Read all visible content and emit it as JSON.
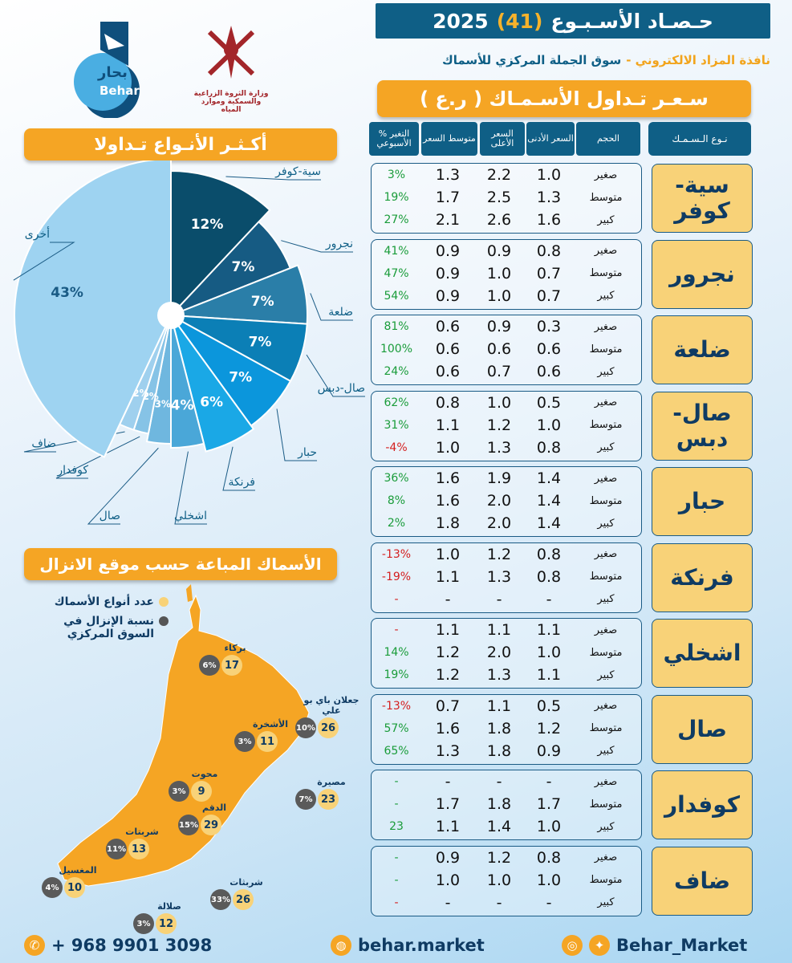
{
  "header": {
    "title_text": "حـصـاد الأسـبـوع",
    "week_number": "(41)",
    "year": "2025",
    "source_prefix": "نافذة المزاد الالكتروني -",
    "source_market": "سوق الجملة المركزي للأسماك"
  },
  "logos": {
    "behar_ar": "بحار",
    "behar_en": "Behar",
    "ministry_line1": "وزارة الثروة الزراعية",
    "ministry_line2": "والسمكية وموارد المياه"
  },
  "price_section": {
    "title": "سـعـر تـداول الأسـمـاك ( ر.ع )",
    "headers": {
      "fish": "نـوع الـسـمـك",
      "size": "الحجم",
      "min": "السعر الأدنى",
      "max": "السعر الأعلى",
      "avg": "متوسط السعر",
      "chg": "% التغير الأسبوعي"
    },
    "groups": [
      {
        "fish": "سية- كوفر",
        "rows": [
          {
            "size": "صغير",
            "min": "1.0",
            "max": "2.2",
            "avg": "1.3",
            "chg": "3%",
            "dir": "pos"
          },
          {
            "size": "متوسط",
            "min": "1.3",
            "max": "2.5",
            "avg": "1.7",
            "chg": "19%",
            "dir": "pos"
          },
          {
            "size": "كبير",
            "min": "1.6",
            "max": "2.6",
            "avg": "2.1",
            "chg": "27%",
            "dir": "pos"
          }
        ]
      },
      {
        "fish": "نجرور",
        "rows": [
          {
            "size": "صغير",
            "min": "0.8",
            "max": "0.9",
            "avg": "0.9",
            "chg": "41%",
            "dir": "pos"
          },
          {
            "size": "متوسط",
            "min": "0.7",
            "max": "1.0",
            "avg": "0.9",
            "chg": "47%",
            "dir": "pos"
          },
          {
            "size": "كبير",
            "min": "0.7",
            "max": "1.0",
            "avg": "0.9",
            "chg": "54%",
            "dir": "pos"
          }
        ]
      },
      {
        "fish": "ضلعة",
        "rows": [
          {
            "size": "صغير",
            "min": "0.3",
            "max": "0.9",
            "avg": "0.6",
            "chg": "81%",
            "dir": "pos"
          },
          {
            "size": "متوسط",
            "min": "0.6",
            "max": "0.6",
            "avg": "0.6",
            "chg": "100%",
            "dir": "pos"
          },
          {
            "size": "كبير",
            "min": "0.6",
            "max": "0.7",
            "avg": "0.6",
            "chg": "24%",
            "dir": "pos"
          }
        ]
      },
      {
        "fish": "صال- دبس",
        "rows": [
          {
            "size": "صغير",
            "min": "0.5",
            "max": "1.0",
            "avg": "0.8",
            "chg": "62%",
            "dir": "pos"
          },
          {
            "size": "متوسط",
            "min": "1.0",
            "max": "1.2",
            "avg": "1.1",
            "chg": "31%",
            "dir": "pos"
          },
          {
            "size": "كبير",
            "min": "0.8",
            "max": "1.3",
            "avg": "1.0",
            "chg": "-4%",
            "dir": "neg"
          }
        ]
      },
      {
        "fish": "حبار",
        "rows": [
          {
            "size": "صغير",
            "min": "1.4",
            "max": "1.9",
            "avg": "1.6",
            "chg": "36%",
            "dir": "pos"
          },
          {
            "size": "متوسط",
            "min": "1.4",
            "max": "2.0",
            "avg": "1.6",
            "chg": "8%",
            "dir": "pos"
          },
          {
            "size": "كبير",
            "min": "1.4",
            "max": "2.0",
            "avg": "1.8",
            "chg": "2%",
            "dir": "pos"
          }
        ]
      },
      {
        "fish": "فرنكة",
        "rows": [
          {
            "size": "صغير",
            "min": "0.8",
            "max": "1.2",
            "avg": "1.0",
            "chg": "-13%",
            "dir": "neg"
          },
          {
            "size": "متوسط",
            "min": "0.8",
            "max": "1.3",
            "avg": "1.1",
            "chg": "-19%",
            "dir": "neg"
          },
          {
            "size": "كبير",
            "min": "-",
            "max": "-",
            "avg": "-",
            "chg": "-",
            "dir": "neg"
          }
        ]
      },
      {
        "fish": "اشخلي",
        "rows": [
          {
            "size": "صغير",
            "min": "1.1",
            "max": "1.1",
            "avg": "1.1",
            "chg": "-",
            "dir": "neg"
          },
          {
            "size": "متوسط",
            "min": "1.0",
            "max": "2.0",
            "avg": "1.2",
            "chg": "14%",
            "dir": "pos"
          },
          {
            "size": "كبير",
            "min": "1.1",
            "max": "1.3",
            "avg": "1.2",
            "chg": "19%",
            "dir": "pos"
          }
        ]
      },
      {
        "fish": "صال",
        "rows": [
          {
            "size": "صغير",
            "min": "0.5",
            "max": "1.1",
            "avg": "0.7",
            "chg": "-13%",
            "dir": "neg"
          },
          {
            "size": "متوسط",
            "min": "1.2",
            "max": "1.8",
            "avg": "1.6",
            "chg": "57%",
            "dir": "pos"
          },
          {
            "size": "كبير",
            "min": "0.9",
            "max": "1.8",
            "avg": "1.3",
            "chg": "65%",
            "dir": "pos"
          }
        ]
      },
      {
        "fish": "كوفدار",
        "rows": [
          {
            "size": "صغير",
            "min": "-",
            "max": "-",
            "avg": "-",
            "chg": "-",
            "dir": "pos"
          },
          {
            "size": "متوسط",
            "min": "1.7",
            "max": "1.8",
            "avg": "1.7",
            "chg": "-",
            "dir": "pos"
          },
          {
            "size": "كبير",
            "min": "1.0",
            "max": "1.4",
            "avg": "1.1",
            "chg": "23",
            "dir": "pos"
          }
        ]
      },
      {
        "fish": "ضاف",
        "rows": [
          {
            "size": "صغير",
            "min": "0.8",
            "max": "1.2",
            "avg": "0.9",
            "chg": "-",
            "dir": "pos"
          },
          {
            "size": "متوسط",
            "min": "1.0",
            "max": "1.0",
            "avg": "1.0",
            "chg": "-",
            "dir": "pos"
          },
          {
            "size": "كبير",
            "min": "-",
            "max": "-",
            "avg": "-",
            "chg": "-",
            "dir": "neg"
          }
        ]
      }
    ]
  },
  "pie_section": {
    "title": "أكـثـر الأنـواع تـداولا"
  },
  "chart_data": {
    "type": "pie",
    "title": "أكـثـر الأنـواع تـداولا",
    "slices": [
      {
        "label": "سية-كوفر",
        "value": 12,
        "color": "#0a4d6b"
      },
      {
        "label": "نجرور",
        "value": 7,
        "color": "#165b83"
      },
      {
        "label": "ضلعة",
        "value": 7,
        "color": "#2a7ea8"
      },
      {
        "label": "صال-دبس",
        "value": 7,
        "color": "#0b7fb6"
      },
      {
        "label": "حبار",
        "value": 7,
        "color": "#0b96dc"
      },
      {
        "label": "فرنكة",
        "value": 6,
        "color": "#1aa8e6"
      },
      {
        "label": "اشخلي",
        "value": 4,
        "color": "#4aa7d8"
      },
      {
        "label": "صال",
        "value": 3,
        "color": "#6fb7df"
      },
      {
        "label": "كوفدار",
        "value": 2,
        "color": "#86c3e6"
      },
      {
        "label": "ضاف",
        "value": 2,
        "color": "#9fd0ee"
      },
      {
        "label": "أخرى",
        "value": 43,
        "color": "#9ed3f1"
      }
    ],
    "value_labels": [
      "12%",
      "7%",
      "7%",
      "7%",
      "7%",
      "6%",
      "4%",
      "3%",
      "2%",
      "2%",
      "43%"
    ]
  },
  "map_section": {
    "title": "الأسماك المباعة حسب موقع الانزال",
    "legend_count": "عدد أنواع الأسماك",
    "legend_share_1": "نسبة الإنزال في",
    "legend_share_2": "السوق المركزي",
    "sites": [
      {
        "name": "بركاء",
        "count": "17",
        "share": "6%"
      },
      {
        "name": "جعلان باي بو علي",
        "count": "26",
        "share": "10%"
      },
      {
        "name": "الأشخرة",
        "count": "11",
        "share": "3%"
      },
      {
        "name": "محوت",
        "count": "9",
        "share": "3%"
      },
      {
        "name": "مصيرة",
        "count": "23",
        "share": "7%"
      },
      {
        "name": "الدقم",
        "count": "29",
        "share": "15%"
      },
      {
        "name": "شربتات",
        "count": "13",
        "share": "11%"
      },
      {
        "name": "شربثات",
        "count": "26",
        "share": "33%"
      },
      {
        "name": "المغسيل",
        "count": "10",
        "share": "4%"
      },
      {
        "name": "صلالة",
        "count": "12",
        "share": "3%"
      }
    ]
  },
  "footer": {
    "phone": "+ 968 9901 3098",
    "website": "behar.market",
    "social": "Behar_Market"
  }
}
